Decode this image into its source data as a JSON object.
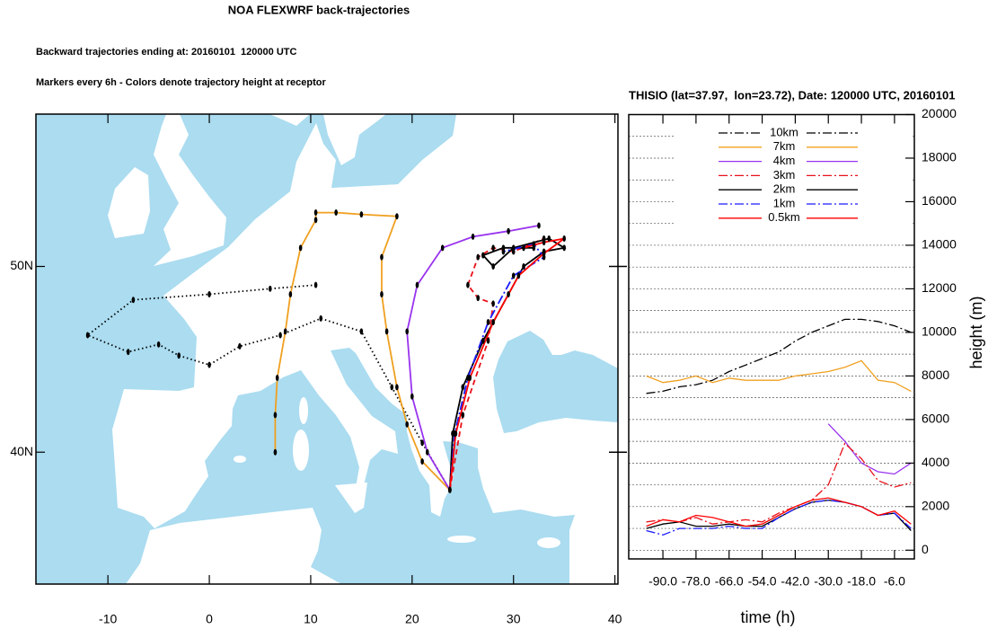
{
  "chart_data": [
    {
      "type": "map",
      "title": "NOA FLEXWRF back-trajectories",
      "subtitles": [
        "Backward trajectories ending at: 20160101  120000 UTC",
        "Markers every 6h - Colors denote trajectory height at receptor"
      ],
      "xlim": [
        -17.1,
        40.3
      ],
      "ylim": [
        32.9,
        58.2
      ],
      "xticks": [
        -10,
        0,
        10,
        20,
        30,
        40
      ],
      "yticks": [
        {
          "value": 40,
          "label": "40N"
        },
        {
          "value": 50,
          "label": "50N"
        }
      ],
      "ocean_color": "#abdcf0",
      "land_color": "#ffffff",
      "series": [
        {
          "color": "#000000",
          "dash": "dot",
          "x": [
            23.72,
            21,
            18,
            15,
            11,
            7,
            3,
            0,
            -3,
            -5,
            -8,
            -12,
            -7.5,
            0,
            6,
            10.5
          ],
          "y": [
            37.97,
            40.5,
            43.5,
            46.5,
            47.2,
            46.3,
            45.7,
            44.7,
            45.2,
            45.8,
            45.4,
            46.3,
            48.2,
            48.5,
            48.8,
            49.0
          ]
        },
        {
          "color": "#f0a020",
          "dash": "solid",
          "x": [
            23.72,
            21,
            19.5,
            18.5,
            17.5,
            17,
            17,
            18.5,
            15,
            12.5,
            10.5,
            10.5,
            9,
            8,
            7.5,
            6.7,
            6.5,
            6.5
          ],
          "y": [
            37.97,
            39.5,
            41.5,
            43.5,
            46.5,
            48.5,
            50.5,
            52.7,
            52.8,
            52.9,
            52.9,
            52.5,
            51,
            48.5,
            46.5,
            44,
            42,
            40
          ]
        },
        {
          "color": "#9933ee",
          "dash": "solid",
          "x": [
            23.72,
            21.5,
            20,
            19.5,
            20.5,
            23,
            26,
            29.5,
            32.5
          ],
          "y": [
            37.97,
            40,
            43,
            46.5,
            49,
            51,
            51.6,
            51.9,
            52.2
          ]
        },
        {
          "color": "#e8101a",
          "dash": "dash",
          "x": [
            23.72,
            25,
            27.5,
            28,
            26.5,
            25.5,
            26.5,
            28,
            30,
            33
          ],
          "y": [
            37.97,
            42,
            46,
            48,
            48.3,
            49,
            50.5,
            51,
            50.8,
            51.5
          ]
        },
        {
          "color": "#000000",
          "dash": "solid",
          "x": [
            23.72,
            24,
            25,
            27,
            29.5,
            31,
            33,
            35,
            33.5,
            30,
            28,
            27,
            29,
            32
          ],
          "y": [
            37.97,
            41,
            43.5,
            46,
            48.5,
            50,
            50.8,
            51,
            51.5,
            51,
            50,
            50.6,
            51,
            51
          ]
        },
        {
          "color": "#1a1aff",
          "dash": "dashdot",
          "x": [
            23.72,
            24.2,
            25.5,
            27.5,
            30,
            33,
            32,
            29
          ],
          "y": [
            37.97,
            41,
            44,
            47,
            49.5,
            50.5,
            51.2,
            50.8
          ]
        },
        {
          "color": "#ff0000",
          "dash": "solid",
          "x": [
            23.72,
            24.3,
            25.7,
            28,
            30.5,
            33,
            35,
            33,
            31
          ],
          "y": [
            37.97,
            41,
            44,
            47,
            49.5,
            50.7,
            51.5,
            51.3,
            51
          ]
        }
      ]
    },
    {
      "type": "line",
      "title": "THISIO (lat=37.97,  lon=23.72), Date: 120000 UTC, 20160101",
      "xlabel": "time (h)",
      "ylabel": "height (m)",
      "x": [
        -96,
        -90,
        -84,
        -78,
        -72,
        -66,
        -60,
        -54,
        -48,
        -42,
        -36,
        -30,
        -24,
        -18,
        -12,
        -6,
        0
      ],
      "xlim": [
        -102.4,
        1.2
      ],
      "ylim": [
        -400,
        20000
      ],
      "xticks": [
        {
          "value": -90,
          "label": "-90.0"
        },
        {
          "value": -78,
          "label": "-78.0"
        },
        {
          "value": -66,
          "label": "-66.0"
        },
        {
          "value": -54,
          "label": "-54.0"
        },
        {
          "value": -42,
          "label": "-42.0"
        },
        {
          "value": -30,
          "label": "-30.0"
        },
        {
          "value": -18,
          "label": "-18.0"
        },
        {
          "value": -6,
          "label": "-6.0"
        }
      ],
      "yticks": [
        0,
        2000,
        4000,
        6000,
        8000,
        10000,
        12000,
        14000,
        16000,
        18000,
        20000
      ],
      "grid": true,
      "legend": "top",
      "series": [
        {
          "name": "10km",
          "color": "#000000",
          "dash": "dashdot",
          "values": [
            7200,
            7300,
            7500,
            7600,
            7800,
            8200,
            8500,
            8800,
            9100,
            9600,
            10000,
            10300,
            10600,
            10600,
            10500,
            10300,
            10000
          ]
        },
        {
          "name": "7km",
          "color": "#f0a020",
          "dash": "solid",
          "values": [
            8000,
            7700,
            7800,
            8000,
            7700,
            7900,
            7800,
            7800,
            7800,
            8000,
            8100,
            8200,
            8400,
            8700,
            7800,
            7700,
            7300
          ]
        },
        {
          "name": "4km",
          "color": "#9933ee",
          "dash": "solid",
          "values": [
            null,
            null,
            null,
            null,
            null,
            null,
            null,
            null,
            null,
            null,
            null,
            5800,
            5000,
            4000,
            3600,
            3500,
            4000
          ]
        },
        {
          "name": "3km",
          "color": "#e8101a",
          "dash": "dashdot",
          "values": [
            1300,
            1400,
            1300,
            1500,
            1200,
            1300,
            1400,
            1300,
            1700,
            2000,
            2300,
            3000,
            4900,
            4200,
            3200,
            2900,
            3100
          ]
        },
        {
          "name": "2km",
          "color": "#000000",
          "dash": "solid",
          "values": [
            1000,
            1200,
            1300,
            1100,
            1100,
            1200,
            1100,
            1100,
            1500,
            1900,
            2200,
            2300,
            2200,
            2000,
            1600,
            1700,
            900
          ]
        },
        {
          "name": "1km",
          "color": "#1a1aff",
          "dash": "dashdot",
          "values": [
            900,
            700,
            1000,
            1000,
            1000,
            1100,
            1000,
            1000,
            1500,
            1900,
            2200,
            2300,
            2200,
            2000,
            1600,
            1700,
            1000
          ]
        },
        {
          "name": "0.5km",
          "color": "#ff0000",
          "dash": "solid",
          "values": [
            1100,
            1400,
            1300,
            1600,
            1500,
            1300,
            1100,
            1200,
            1600,
            2000,
            2300,
            2400,
            2200,
            2000,
            1600,
            1800,
            1200
          ]
        }
      ]
    }
  ]
}
